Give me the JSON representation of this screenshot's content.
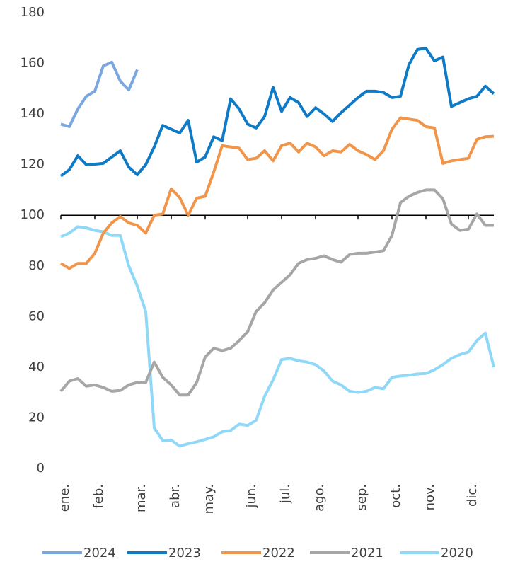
{
  "chart_data": {
    "type": "line",
    "categories": [
      "ene.",
      null,
      null,
      null,
      "feb.",
      null,
      null,
      null,
      null,
      "mar.",
      null,
      null,
      null,
      "abr.",
      null,
      null,
      null,
      "may.",
      null,
      null,
      null,
      null,
      "jun.",
      null,
      null,
      null,
      "jul.",
      null,
      null,
      null,
      "ago.",
      null,
      null,
      null,
      null,
      "sep.",
      null,
      null,
      null,
      "oct.",
      null,
      null,
      null,
      "nov.",
      null,
      null,
      null,
      null,
      "dic.",
      null,
      null,
      null
    ],
    "series": [
      {
        "name": "2024",
        "color": "#7ba7e0",
        "values": [
          136,
          135,
          142,
          147,
          149,
          159,
          160.5,
          153,
          149.5,
          157.5,
          null,
          null,
          null,
          null,
          null,
          null,
          null,
          null,
          null,
          null,
          null,
          null,
          null,
          null,
          null,
          null,
          null,
          null,
          null,
          null,
          null,
          null,
          null,
          null,
          null,
          null,
          null,
          null,
          null,
          null,
          null,
          null,
          null,
          null,
          null,
          null,
          null,
          null,
          null,
          null,
          null,
          null
        ]
      },
      {
        "name": "2023",
        "color": "#0f7ac6",
        "values": [
          115.5,
          118,
          123.5,
          120,
          120.2,
          120.5,
          123,
          125.5,
          119,
          116,
          120,
          127,
          135.5,
          134,
          132.5,
          137.5,
          121,
          123,
          131,
          129.5,
          146,
          142,
          136,
          134.5,
          139,
          150.5,
          141,
          146.5,
          144.5,
          139,
          142.5,
          140,
          137,
          140.5,
          143.5,
          146.5,
          149,
          149,
          148.5,
          146.5,
          147,
          159.5,
          165.5,
          166,
          161,
          162.5,
          143,
          144.5,
          146,
          147,
          151,
          148
        ]
      },
      {
        "name": "2022",
        "color": "#f0954a",
        "values": [
          81,
          79,
          81,
          81,
          85,
          93,
          97,
          99.5,
          97,
          96,
          93,
          100,
          100.5,
          110.5,
          107,
          100,
          106.8,
          107.5,
          117,
          127.5,
          127,
          126.5,
          122,
          122.5,
          125.5,
          121.5,
          127.5,
          128.5,
          125,
          128.5,
          127,
          123.5,
          125.5,
          125,
          128,
          125.5,
          124,
          122,
          125.5,
          134,
          138.5,
          138,
          137.5,
          135,
          134.5,
          120.5,
          121.5,
          122,
          122.5,
          130,
          131,
          131.2
        ]
      },
      {
        "name": "2021",
        "color": "#a6a6a6",
        "values": [
          30.5,
          34.5,
          35.5,
          32.5,
          33,
          32,
          30.5,
          30.8,
          33,
          34,
          34,
          42,
          36,
          33,
          29,
          29,
          34,
          44,
          47.5,
          46.5,
          47.5,
          50.5,
          54,
          62,
          65.5,
          70.5,
          73.5,
          76.5,
          81,
          82.5,
          83,
          84,
          82.5,
          81.5,
          84.5,
          85,
          85,
          85.5,
          86,
          92,
          105,
          107.5,
          109,
          110,
          110,
          106.5,
          96.5,
          94,
          94.5,
          100.5,
          96,
          96
        ]
      },
      {
        "name": "2020",
        "color": "#8fd8f8",
        "values": [
          91.5,
          93,
          95.5,
          95,
          94,
          93.5,
          92,
          92,
          80,
          72,
          62,
          16,
          11,
          11.2,
          8.8,
          9.8,
          10.5,
          11.5,
          12.5,
          14.5,
          15,
          17.5,
          17,
          19,
          28.5,
          35,
          43,
          43.5,
          42.5,
          42,
          41,
          38.5,
          34.5,
          33,
          30.5,
          30,
          30.5,
          32,
          31.5,
          36,
          36.5,
          36.8,
          37.3,
          37.5,
          39,
          41,
          43.5,
          45,
          46,
          50.5,
          53.5,
          40
        ]
      }
    ],
    "ylim": [
      0,
      180
    ],
    "yticks": [
      0,
      20,
      40,
      60,
      80,
      100,
      120,
      140,
      160,
      180
    ],
    "x_axis_at": 100,
    "grid": false,
    "legend": "bottom"
  }
}
